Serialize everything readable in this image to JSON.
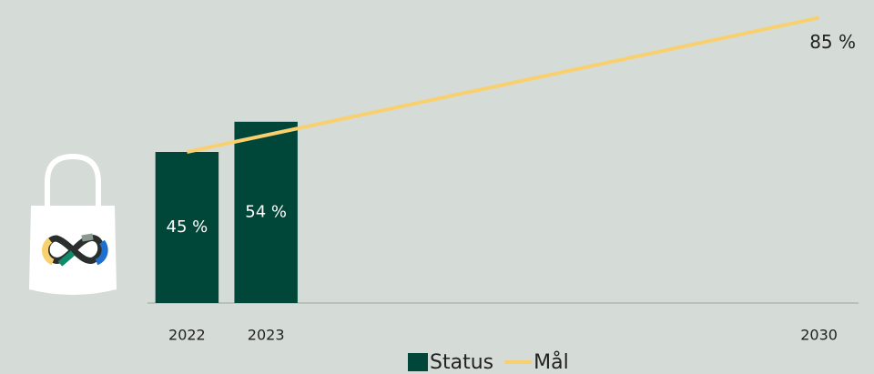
{
  "chart_data": {
    "type": "bar",
    "xlim": [
      2021.5,
      2030.5
    ],
    "xticks": [
      2022,
      2023,
      2030
    ],
    "ylim": [
      0,
      90
    ],
    "series": [
      {
        "name": "Status",
        "type": "bar",
        "color": "#00473a",
        "x": [
          2022,
          2023
        ],
        "values": [
          45,
          54
        ],
        "value_labels": [
          "45 %",
          "54 %"
        ]
      },
      {
        "name": "Mål",
        "type": "line",
        "color": "#f9d06f",
        "x": [
          2022,
          2030
        ],
        "values": [
          45,
          85
        ],
        "value_labels": [
          null,
          "85 %"
        ]
      }
    ]
  }
}
